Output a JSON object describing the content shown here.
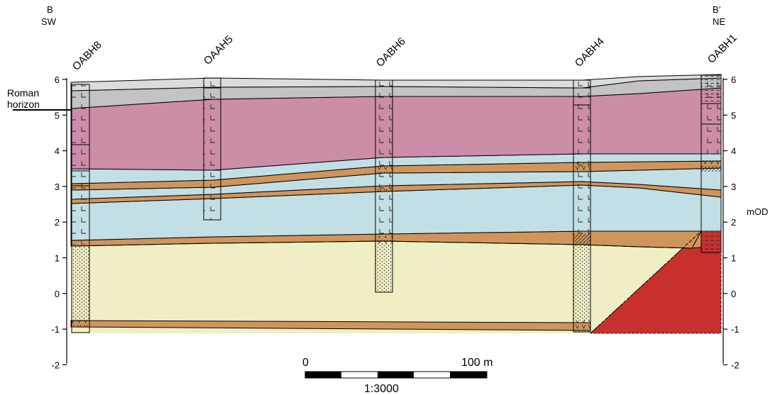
{
  "section": {
    "left_end": {
      "letter": "B",
      "direction": "SW"
    },
    "right_end": {
      "letter": "B’",
      "direction": "NE"
    },
    "horizon_label": [
      "Roman",
      "horizon"
    ],
    "axis_unit": "mOD",
    "boreholes": [
      {
        "id": "OABH8"
      },
      {
        "id": "OAAH5"
      },
      {
        "id": "OABH6"
      },
      {
        "id": "OABH4"
      },
      {
        "id": "OABH1"
      }
    ],
    "scale_bar": {
      "start": "0",
      "end": "100 m",
      "ratio": "1:3000"
    },
    "colors": {
      "made_ground_light": "#dcdcdc",
      "made_ground_dark": "#c3c3c6",
      "clay_pink": "#cd8ca8",
      "silt_blue": "#c2dfe6",
      "peat_orange": "#d0955c",
      "sand_yellow": "#efeec4",
      "bedrock_red": "#c8302e"
    }
  },
  "chart_data": {
    "type": "cross-section",
    "y_axis_label": "mOD",
    "y_range": [
      -2,
      6
    ],
    "y_ticks": [
      6,
      5,
      4,
      3,
      2,
      1,
      0,
      -1,
      -2
    ],
    "borehole_positions": [
      "OABH8",
      "OAAH5",
      "OABH6",
      "OABH4",
      "OABH1"
    ],
    "layers_top_elevation_mOD": {
      "ground_surface": [
        5.85,
        6.0,
        5.95,
        5.95,
        6.1
      ],
      "clay_top": [
        5.2,
        5.5,
        5.5,
        5.5,
        5.8
      ],
      "silt_top": [
        3.45,
        3.45,
        3.8,
        3.9,
        3.9
      ],
      "sand_top": [
        1.35,
        1.45,
        1.5,
        1.4,
        1.55
      ]
    }
  }
}
